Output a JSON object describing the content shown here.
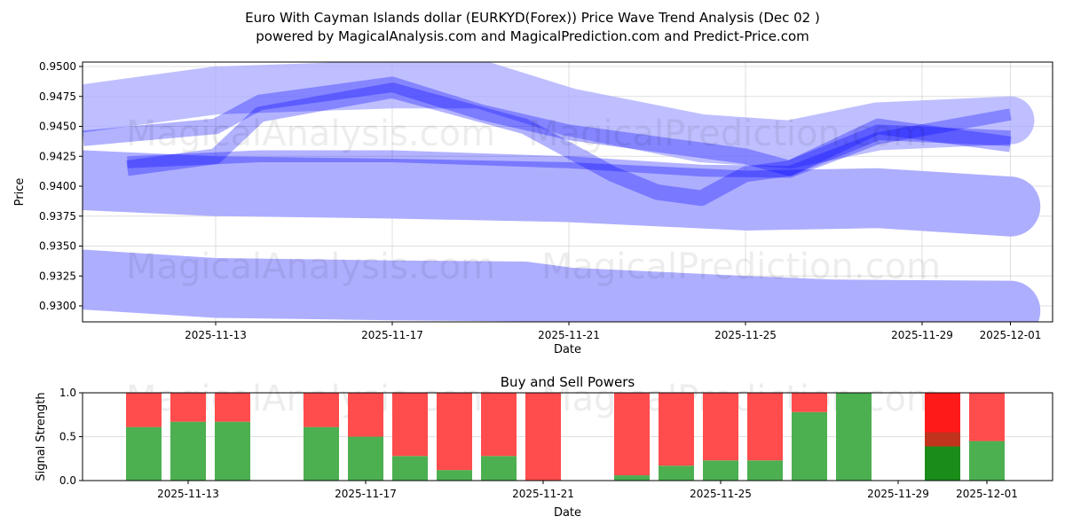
{
  "title": {
    "line1": "Euro With Cayman Islands dollar (EURKYD(Forex)) Price Wave Trend Analysis (Dec 02 )",
    "line2": "powered by MagicalAnalysis.com and MagicalPrediction.com and Predict-Price.com"
  },
  "watermarks": [
    "MagicalAnalysis.com",
    "MagicalPrediction.com"
  ],
  "colors": {
    "wave": "#0000ff",
    "band": "#aaaaff",
    "buy": "#4caf50",
    "sell": "#ff4c4c",
    "buy_highlight": "#1a8c1a",
    "sell_highlight": "#ff1a1a",
    "overlap": "#c0341d"
  },
  "chart_data": [
    {
      "type": "line",
      "title": "",
      "xlabel": "Date",
      "ylabel": "Price",
      "xlim": [
        "2025-11-10",
        "2025-12-02"
      ],
      "ylim": [
        0.92867,
        0.95037
      ],
      "grid": true,
      "yticks": [
        "0.9300",
        "0.9325",
        "0.9350",
        "0.9375",
        "0.9400",
        "0.9425",
        "0.9450",
        "0.9475",
        "0.9500"
      ],
      "xticks": [
        "2025-11-13",
        "2025-11-17",
        "2025-11-21",
        "2025-11-25",
        "2025-11-29",
        "2025-12-01"
      ],
      "bands": [
        {
          "name": "lower-band",
          "width": 0.005,
          "opacity": 0.95,
          "x": [
            "2025-11-10",
            "2025-11-13",
            "2025-11-17",
            "2025-11-20",
            "2025-11-21",
            "2025-11-25",
            "2025-11-27",
            "2025-12-01"
          ],
          "y": [
            0.9322,
            0.9315,
            0.9313,
            0.9312,
            0.9307,
            0.93,
            0.9297,
            0.9296
          ]
        },
        {
          "name": "middle-band",
          "width": 0.005,
          "opacity": 0.95,
          "x": [
            "2025-11-10",
            "2025-11-13",
            "2025-11-17",
            "2025-11-21",
            "2025-11-25",
            "2025-11-28",
            "2025-12-01"
          ],
          "y": [
            0.9405,
            0.94,
            0.9398,
            0.9395,
            0.9388,
            0.939,
            0.9383
          ]
        },
        {
          "name": "upper-band",
          "width": 0.004,
          "opacity": 0.75,
          "x": [
            "2025-11-10",
            "2025-11-13",
            "2025-11-17",
            "2025-11-19",
            "2025-11-21",
            "2025-11-24",
            "2025-11-26",
            "2025-11-28",
            "2025-12-01"
          ],
          "y": [
            0.9465,
            0.948,
            0.9485,
            0.9485,
            0.9462,
            0.944,
            0.9435,
            0.945,
            0.9455
          ]
        }
      ],
      "waves": [
        {
          "name": "wave-1",
          "width": 0.0013,
          "x": [
            "2025-11-11",
            "2025-11-13",
            "2025-11-14",
            "2025-11-17",
            "2025-11-19",
            "2025-11-20",
            "2025-11-22",
            "2025-11-23",
            "2025-11-24",
            "2025-11-25",
            "2025-11-26",
            "2025-11-27",
            "2025-11-28",
            "2025-12-01"
          ],
          "y": [
            0.9415,
            0.9425,
            0.946,
            0.948,
            0.946,
            0.945,
            0.941,
            0.9395,
            0.939,
            0.941,
            0.9415,
            0.943,
            0.9445,
            0.944
          ]
        },
        {
          "name": "wave-2",
          "width": 0.0013,
          "x": [
            "2025-11-10",
            "2025-11-13",
            "2025-11-14",
            "2025-11-17",
            "2025-11-19",
            "2025-11-21",
            "2025-11-23",
            "2025-11-25",
            "2025-11-26",
            "2025-11-28",
            "2025-12-01"
          ],
          "y": [
            0.944,
            0.945,
            0.947,
            0.9485,
            0.9462,
            0.9445,
            0.9435,
            0.9425,
            0.9415,
            0.945,
            0.9435
          ]
        },
        {
          "name": "wave-3",
          "width": 0.001,
          "x": [
            "2025-11-11",
            "2025-11-14",
            "2025-11-17",
            "2025-11-21",
            "2025-11-24",
            "2025-11-26",
            "2025-11-28",
            "2025-12-01"
          ],
          "y": [
            0.942,
            0.9425,
            0.9425,
            0.942,
            0.9413,
            0.9412,
            0.944,
            0.946
          ]
        }
      ]
    },
    {
      "type": "bar",
      "title": "Buy and Sell Powers",
      "xlabel": "Date",
      "ylabel": "Signal Strength",
      "ylim": [
        0,
        1
      ],
      "xlim": [
        "2025-11-10.62",
        "2025-12-02.48"
      ],
      "yticks": [
        "0.0",
        "0.5",
        "1.0"
      ],
      "xticks": [
        "2025-11-13",
        "2025-11-17",
        "2025-11-21",
        "2025-11-25",
        "2025-11-29",
        "2025-12-01"
      ],
      "categories": [
        "2025-11-12",
        "2025-11-13",
        "2025-11-14",
        "2025-11-16",
        "2025-11-17",
        "2025-11-18",
        "2025-11-19",
        "2025-11-20",
        "2025-11-21",
        "2025-11-23",
        "2025-11-24",
        "2025-11-25",
        "2025-11-26",
        "2025-11-27",
        "2025-11-28",
        "2025-11-30",
        "2025-12-01"
      ],
      "series": [
        {
          "name": "Buy",
          "values": [
            0.61,
            0.67,
            0.67,
            0.61,
            0.5,
            0.28,
            0.12,
            0.28,
            0.0,
            0.06,
            0.17,
            0.23,
            0.23,
            0.78,
            1.0,
            0.39,
            0.45
          ]
        },
        {
          "name": "Sell",
          "values": [
            0.39,
            0.33,
            0.33,
            0.39,
            0.5,
            0.72,
            0.88,
            0.72,
            1.0,
            0.94,
            0.83,
            0.77,
            0.77,
            0.22,
            0.0,
            0.61,
            0.55
          ]
        }
      ],
      "highlight": {
        "category": "2025-11-30",
        "overlap": [
          0.39,
          0.55
        ]
      }
    }
  ]
}
